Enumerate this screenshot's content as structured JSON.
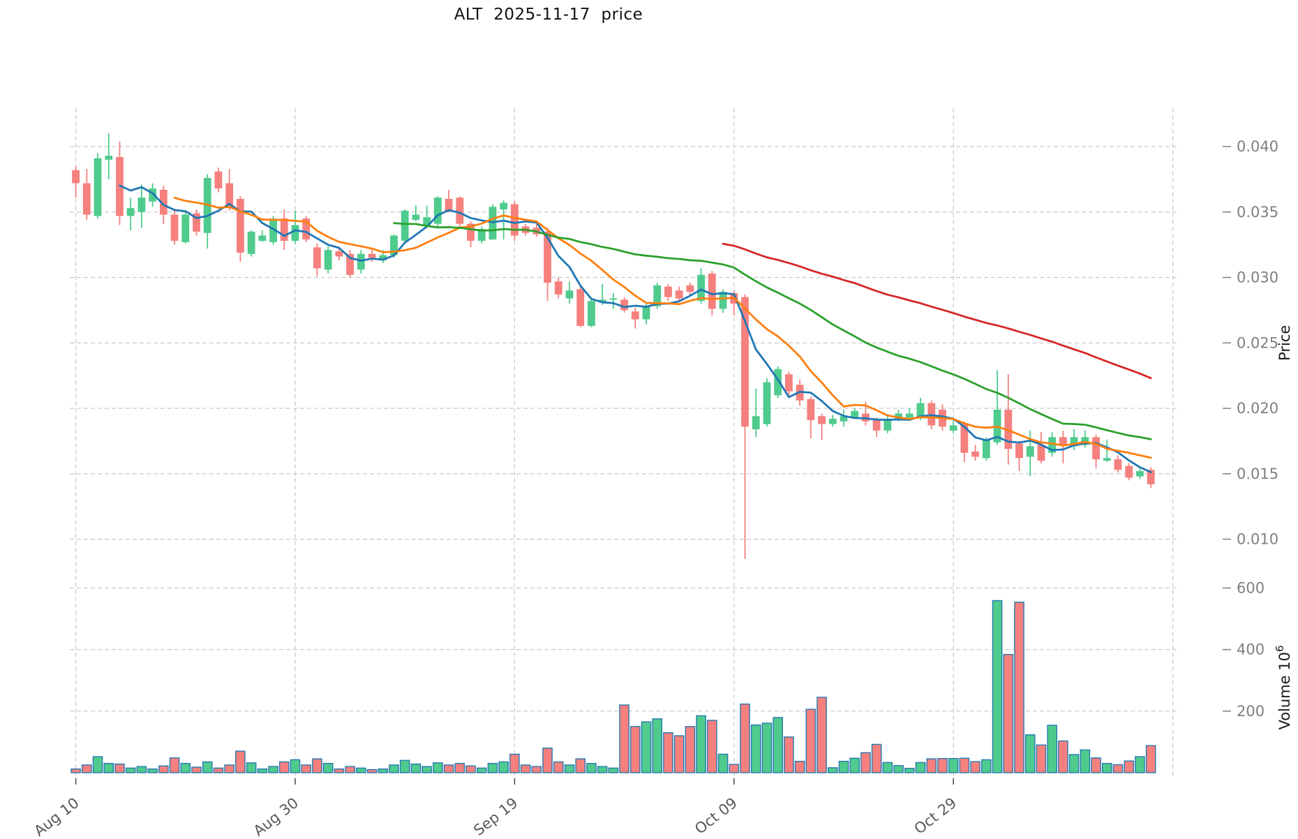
{
  "chart_data": {
    "type": "candlestick+volume",
    "title": "ALT  2025-11-17  price",
    "legend_position": "none",
    "grid": true,
    "x_axis": {
      "tick_labels": [
        "Aug 10",
        "Aug 30",
        "Sep 19",
        "Oct 09",
        "Oct 29"
      ],
      "tick_indices": [
        0,
        20,
        40,
        60,
        80
      ],
      "gridline_indices": [
        0,
        20,
        40,
        60,
        80,
        100
      ]
    },
    "price_axis": {
      "label": "Price",
      "side": "right",
      "ticks": [
        0.04,
        0.035,
        0.03,
        0.025,
        0.02,
        0.015,
        0.01
      ],
      "tick_labels": [
        "0.040",
        "0.035",
        "0.030",
        "0.025",
        "0.020",
        "0.015",
        "0.010"
      ]
    },
    "volume_axis": {
      "label_base": "Volume  10",
      "label_exponent": "6",
      "side": "right",
      "ticks": [
        600,
        400,
        200
      ],
      "tick_labels": [
        "600",
        "400",
        "200"
      ]
    },
    "colors": {
      "up": "#4fcb8d",
      "down": "#f5807e",
      "volume_edge": "#2779b0",
      "ma5": "#1f77b4",
      "ma10": "#ff7f0e",
      "ma30": "#2ca02c",
      "ma60": "#d62728",
      "grid": "#c9c9c9",
      "tick_text": "#7f7f7f",
      "axis_title_text": "#1a1a1a",
      "title_text": "#111111"
    },
    "moving_averages": [
      {
        "name": "MA5",
        "window": 5,
        "color_key": "ma5"
      },
      {
        "name": "MA10",
        "window": 10,
        "color_key": "ma10"
      },
      {
        "name": "MA30",
        "window": 30,
        "color_key": "ma30"
      },
      {
        "name": "MA60",
        "window": 60,
        "color_key": "ma60"
      }
    ],
    "ohlc": [
      [
        0.0382,
        0.0385,
        0.0361,
        0.0372
      ],
      [
        0.0372,
        0.0383,
        0.0344,
        0.0348
      ],
      [
        0.0347,
        0.0395,
        0.0345,
        0.0391
      ],
      [
        0.039,
        0.041,
        0.0375,
        0.0393
      ],
      [
        0.0392,
        0.0404,
        0.034,
        0.0347
      ],
      [
        0.0347,
        0.0361,
        0.0336,
        0.0353
      ],
      [
        0.035,
        0.0371,
        0.0338,
        0.0361
      ],
      [
        0.0358,
        0.0372,
        0.0354,
        0.0368
      ],
      [
        0.0367,
        0.037,
        0.0341,
        0.0348
      ],
      [
        0.0348,
        0.0352,
        0.0325,
        0.0328
      ],
      [
        0.0327,
        0.0351,
        0.0326,
        0.0348
      ],
      [
        0.0349,
        0.0352,
        0.0332,
        0.0335
      ],
      [
        0.0334,
        0.0379,
        0.0322,
        0.0376
      ],
      [
        0.0381,
        0.0384,
        0.0365,
        0.0368
      ],
      [
        0.0372,
        0.0383,
        0.0351,
        0.0354
      ],
      [
        0.036,
        0.0362,
        0.0312,
        0.0319
      ],
      [
        0.0318,
        0.0336,
        0.0316,
        0.0335
      ],
      [
        0.0328,
        0.0336,
        0.0327,
        0.0332
      ],
      [
        0.0327,
        0.0347,
        0.0325,
        0.0345
      ],
      [
        0.0345,
        0.0352,
        0.0321,
        0.0328
      ],
      [
        0.0328,
        0.0351,
        0.0326,
        0.034
      ],
      [
        0.0345,
        0.0347,
        0.0327,
        0.0329
      ],
      [
        0.0323,
        0.0326,
        0.0301,
        0.0307
      ],
      [
        0.0306,
        0.0324,
        0.0303,
        0.0321
      ],
      [
        0.032,
        0.0323,
        0.0313,
        0.0316
      ],
      [
        0.0318,
        0.0321,
        0.03,
        0.0302
      ],
      [
        0.0306,
        0.0321,
        0.0303,
        0.0318
      ],
      [
        0.0318,
        0.0321,
        0.0312,
        0.0315
      ],
      [
        0.0313,
        0.0321,
        0.0311,
        0.0317
      ],
      [
        0.0317,
        0.0333,
        0.0315,
        0.0332
      ],
      [
        0.0328,
        0.0352,
        0.0327,
        0.0351
      ],
      [
        0.0344,
        0.0355,
        0.0343,
        0.0348
      ],
      [
        0.034,
        0.0355,
        0.0338,
        0.0346
      ],
      [
        0.0341,
        0.0362,
        0.0339,
        0.0361
      ],
      [
        0.036,
        0.0367,
        0.035,
        0.0351
      ],
      [
        0.0361,
        0.0362,
        0.0338,
        0.0341
      ],
      [
        0.0341,
        0.0343,
        0.0323,
        0.0328
      ],
      [
        0.0328,
        0.0339,
        0.0326,
        0.0337
      ],
      [
        0.0329,
        0.0356,
        0.0329,
        0.0354
      ],
      [
        0.0352,
        0.0359,
        0.0329,
        0.0357
      ],
      [
        0.0356,
        0.0358,
        0.0328,
        0.0332
      ],
      [
        0.0339,
        0.0341,
        0.0332,
        0.0334
      ],
      [
        0.0338,
        0.0341,
        0.0331,
        0.0333
      ],
      [
        0.0335,
        0.0338,
        0.0282,
        0.0296
      ],
      [
        0.0297,
        0.03,
        0.0284,
        0.0287
      ],
      [
        0.0284,
        0.0297,
        0.028,
        0.029
      ],
      [
        0.0291,
        0.0293,
        0.0262,
        0.0263
      ],
      [
        0.0263,
        0.0284,
        0.0262,
        0.0282
      ],
      [
        0.0281,
        0.0295,
        0.0279,
        0.0283
      ],
      [
        0.0283,
        0.0288,
        0.0276,
        0.0284
      ],
      [
        0.0283,
        0.0285,
        0.0273,
        0.0275
      ],
      [
        0.0274,
        0.0277,
        0.0261,
        0.0268
      ],
      [
        0.0268,
        0.028,
        0.0264,
        0.0278
      ],
      [
        0.0278,
        0.0296,
        0.0276,
        0.0294
      ],
      [
        0.0293,
        0.0295,
        0.0282,
        0.0285
      ],
      [
        0.029,
        0.0293,
        0.0281,
        0.0284
      ],
      [
        0.0294,
        0.0296,
        0.0286,
        0.0289
      ],
      [
        0.0282,
        0.0307,
        0.028,
        0.0302
      ],
      [
        0.0303,
        0.0305,
        0.0271,
        0.0276
      ],
      [
        0.0276,
        0.0291,
        0.0273,
        0.0289
      ],
      [
        0.0288,
        0.029,
        0.0271,
        0.028
      ],
      [
        0.0285,
        0.0287,
        0.0085,
        0.0186
      ],
      [
        0.0184,
        0.0215,
        0.0178,
        0.0194
      ],
      [
        0.0188,
        0.0223,
        0.0186,
        0.022
      ],
      [
        0.021,
        0.0232,
        0.0208,
        0.023
      ],
      [
        0.0226,
        0.0228,
        0.021,
        0.0213
      ],
      [
        0.0218,
        0.0222,
        0.0202,
        0.0206
      ],
      [
        0.0207,
        0.0209,
        0.0177,
        0.0191
      ],
      [
        0.0194,
        0.0196,
        0.0176,
        0.0188
      ],
      [
        0.0188,
        0.0195,
        0.0186,
        0.0192
      ],
      [
        0.019,
        0.0199,
        0.0186,
        0.0194
      ],
      [
        0.0193,
        0.02,
        0.0192,
        0.0198
      ],
      [
        0.0196,
        0.0205,
        0.0187,
        0.019
      ],
      [
        0.0191,
        0.0193,
        0.0178,
        0.0183
      ],
      [
        0.0183,
        0.0194,
        0.0181,
        0.0191
      ],
      [
        0.0192,
        0.0199,
        0.019,
        0.0196
      ],
      [
        0.0193,
        0.02,
        0.0191,
        0.0196
      ],
      [
        0.0194,
        0.0208,
        0.0191,
        0.0204
      ],
      [
        0.0204,
        0.0206,
        0.0184,
        0.0187
      ],
      [
        0.0199,
        0.0203,
        0.0183,
        0.0186
      ],
      [
        0.0183,
        0.0191,
        0.0181,
        0.0187
      ],
      [
        0.0188,
        0.019,
        0.0159,
        0.0166
      ],
      [
        0.0167,
        0.0172,
        0.016,
        0.0163
      ],
      [
        0.0162,
        0.0178,
        0.016,
        0.0176
      ],
      [
        0.0174,
        0.0229,
        0.0172,
        0.0199
      ],
      [
        0.0199,
        0.0226,
        0.0157,
        0.0169
      ],
      [
        0.0173,
        0.0175,
        0.0152,
        0.0162
      ],
      [
        0.0163,
        0.0183,
        0.0148,
        0.0171
      ],
      [
        0.0172,
        0.0182,
        0.0158,
        0.016
      ],
      [
        0.0166,
        0.0182,
        0.0163,
        0.0178
      ],
      [
        0.0178,
        0.0183,
        0.0158,
        0.0172
      ],
      [
        0.0171,
        0.0184,
        0.0168,
        0.0178
      ],
      [
        0.0172,
        0.0183,
        0.017,
        0.0178
      ],
      [
        0.0178,
        0.018,
        0.0154,
        0.0161
      ],
      [
        0.016,
        0.0176,
        0.0159,
        0.0162
      ],
      [
        0.0161,
        0.0164,
        0.0151,
        0.0153
      ],
      [
        0.0156,
        0.0158,
        0.0145,
        0.0147
      ],
      [
        0.0148,
        0.0154,
        0.0146,
        0.0152
      ],
      [
        0.0153,
        0.0155,
        0.0139,
        0.0142
      ]
    ],
    "volume_millions": [
      12,
      25,
      52,
      30,
      28,
      15,
      20,
      12,
      22,
      48,
      30,
      18,
      35,
      15,
      25,
      70,
      32,
      12,
      20,
      35,
      42,
      25,
      45,
      30,
      12,
      20,
      15,
      10,
      12,
      25,
      40,
      28,
      20,
      32,
      25,
      30,
      22,
      15,
      30,
      35,
      60,
      25,
      20,
      80,
      35,
      25,
      45,
      30,
      20,
      15,
      220,
      150,
      165,
      175,
      130,
      120,
      150,
      185,
      170,
      60,
      27,
      223,
      155,
      161,
      179,
      116,
      37,
      206,
      245,
      16,
      37,
      47,
      65,
      92,
      33,
      23,
      14,
      33,
      45,
      46,
      46,
      47,
      36,
      42,
      559,
      384,
      554,
      123,
      90,
      154,
      103,
      59,
      74,
      48,
      30,
      26,
      38,
      52,
      88
    ]
  }
}
